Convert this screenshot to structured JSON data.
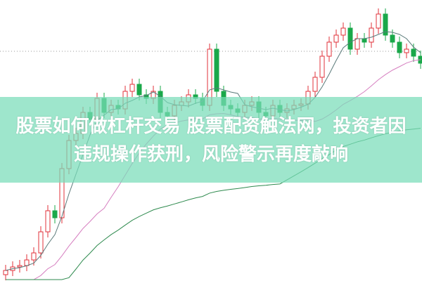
{
  "headline": "股票如何做杠杆交易 股票配资触法网，投资者因违规操作获刑，风险警示再度敲响",
  "colors": {
    "up": "#e0303a",
    "down": "#1aa84a",
    "banner": "#78dcb9",
    "ma_short": "#5a7a7a",
    "ma_mid": "#d67fc0",
    "ma_long": "#2e8a4e"
  }
}
